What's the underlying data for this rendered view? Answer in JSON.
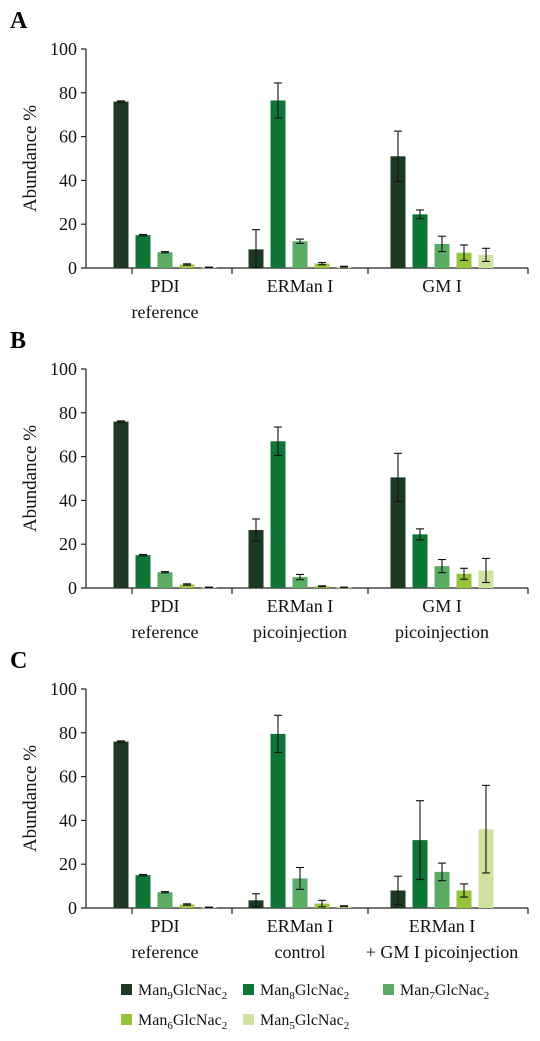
{
  "colors": {
    "Man9": "#1c3a21",
    "Man8": "#0f7535",
    "Man7": "#5aab64",
    "Man6": "#97c43b",
    "Man5": "#cfe2a2"
  },
  "chart_data": [
    {
      "type": "bar",
      "panel_label": "A",
      "ylabel": "Abundance %",
      "ylim": [
        0,
        100
      ],
      "yticks": [
        0,
        20,
        40,
        60,
        80,
        100
      ],
      "grid": false,
      "legend": "bottom",
      "groups": [
        {
          "label_lines": [
            "PDI",
            "reference"
          ]
        },
        {
          "label_lines": [
            "ERMan I"
          ]
        },
        {
          "label_lines": [
            "GM I"
          ]
        }
      ],
      "series": [
        {
          "name": "Man9GlcNac2",
          "key": "Man9",
          "values": [
            76,
            8.5,
            51
          ],
          "errors": [
            0.3,
            9,
            11.5
          ]
        },
        {
          "name": "Man8GlcNac2",
          "key": "Man8",
          "values": [
            15,
            76.5,
            24.5
          ],
          "errors": [
            0.3,
            8,
            2
          ]
        },
        {
          "name": "Man7GlcNac2",
          "key": "Man7",
          "values": [
            7.2,
            12.2,
            11
          ],
          "errors": [
            0.3,
            1,
            3.5
          ]
        },
        {
          "name": "Man6GlcNac2",
          "key": "Man6",
          "values": [
            1.6,
            2,
            7
          ],
          "errors": [
            0.3,
            0.5,
            3.5
          ]
        },
        {
          "name": "Man5GlcNac2",
          "key": "Man5",
          "values": [
            0.3,
            0.6,
            6
          ],
          "errors": [
            0.1,
            0.2,
            3
          ]
        }
      ]
    },
    {
      "type": "bar",
      "panel_label": "B",
      "ylabel": "Abundance %",
      "ylim": [
        0,
        100
      ],
      "yticks": [
        0,
        20,
        40,
        60,
        80,
        100
      ],
      "grid": false,
      "groups": [
        {
          "label_lines": [
            "PDI",
            "reference"
          ]
        },
        {
          "label_lines": [
            "ERMan I",
            "picoinjection"
          ]
        },
        {
          "label_lines": [
            "GM I",
            "picoinjection"
          ]
        }
      ],
      "series": [
        {
          "name": "Man9GlcNac2",
          "key": "Man9",
          "values": [
            76,
            26.5,
            50.5
          ],
          "errors": [
            0.3,
            5,
            11
          ]
        },
        {
          "name": "Man8GlcNac2",
          "key": "Man8",
          "values": [
            15,
            67,
            24.5
          ],
          "errors": [
            0.3,
            6.5,
            2.5
          ]
        },
        {
          "name": "Man7GlcNac2",
          "key": "Man7",
          "values": [
            7.2,
            5,
            10
          ],
          "errors": [
            0.3,
            1.2,
            3
          ]
        },
        {
          "name": "Man6GlcNac2",
          "key": "Man6",
          "values": [
            1.6,
            0.8,
            6.5
          ],
          "errors": [
            0.3,
            0.2,
            2.5
          ]
        },
        {
          "name": "Man5GlcNac2",
          "key": "Man5",
          "values": [
            0.3,
            0.3,
            8
          ],
          "errors": [
            0.1,
            0.1,
            5.5
          ]
        }
      ]
    },
    {
      "type": "bar",
      "panel_label": "C",
      "ylabel": "Abundance %",
      "ylim": [
        0,
        100
      ],
      "yticks": [
        0,
        20,
        40,
        60,
        80,
        100
      ],
      "grid": false,
      "groups": [
        {
          "label_lines": [
            "PDI",
            "reference"
          ]
        },
        {
          "label_lines": [
            "ERMan I",
            "control"
          ]
        },
        {
          "label_lines": [
            "ERMan I",
            "+ GM I picoinjection"
          ]
        }
      ],
      "series": [
        {
          "name": "Man9GlcNac2",
          "key": "Man9",
          "values": [
            76,
            3.5,
            8
          ],
          "errors": [
            0.3,
            3,
            6.5
          ]
        },
        {
          "name": "Man8GlcNac2",
          "key": "Man8",
          "values": [
            15,
            79.5,
            31
          ],
          "errors": [
            0.3,
            8.5,
            18
          ]
        },
        {
          "name": "Man7GlcNac2",
          "key": "Man7",
          "values": [
            7.2,
            13.5,
            16.5
          ],
          "errors": [
            0.3,
            5,
            4
          ]
        },
        {
          "name": "Man6GlcNac2",
          "key": "Man6",
          "values": [
            1.6,
            2,
            8
          ],
          "errors": [
            0.3,
            1.5,
            3
          ]
        },
        {
          "name": "Man5GlcNac2",
          "key": "Man5",
          "values": [
            0.3,
            0.8,
            36
          ],
          "errors": [
            0.1,
            0.2,
            20
          ]
        }
      ]
    }
  ],
  "legend": {
    "items": [
      {
        "key": "Man9",
        "prefix": "Man",
        "sub1": "9",
        "mid": "GlcNac",
        "sub2": "2"
      },
      {
        "key": "Man8",
        "prefix": "Man",
        "sub1": "8",
        "mid": "GlcNac",
        "sub2": "2"
      },
      {
        "key": "Man7",
        "prefix": "Man",
        "sub1": "7",
        "mid": "GlcNac",
        "sub2": "2"
      },
      {
        "key": "Man6",
        "prefix": "Man",
        "sub1": "6",
        "mid": "GlcNac",
        "sub2": "2"
      },
      {
        "key": "Man5",
        "prefix": "Man",
        "sub1": "5",
        "mid": "GlcNac",
        "sub2": "2"
      }
    ]
  }
}
